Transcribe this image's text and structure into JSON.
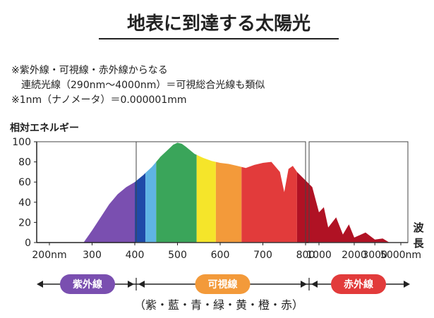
{
  "title": "地表に到達する太陽光",
  "notes": [
    "※紫外線・可視線・赤外線からなる",
    "連続光線（290nm〜4000nm）＝可視総合光線も類似",
    "※1nm（ナノメータ）＝0.000001mm"
  ],
  "chart_data": {
    "type": "area",
    "ylabel": "相対エネルギー",
    "xlabel": "波長",
    "ylim": [
      0,
      100
    ],
    "y_ticks": [
      "0",
      "20",
      "40",
      "60",
      "80",
      "100"
    ],
    "x_ticks": [
      "200nm",
      "300",
      "400",
      "500",
      "600",
      "700",
      "800",
      "1000",
      "2000",
      "3000",
      "5000nm"
    ],
    "grid": false,
    "visible_spectrum": {
      "x": [
        280,
        300,
        320,
        340,
        360,
        380,
        400,
        420,
        440,
        460,
        480,
        490,
        500,
        510,
        520,
        540,
        560,
        580,
        600,
        620,
        640,
        660,
        680,
        700,
        720,
        740,
        750,
        760,
        770,
        780
      ],
      "y": [
        0,
        12,
        25,
        38,
        48,
        55,
        60,
        67,
        75,
        85,
        93,
        97,
        99,
        98,
        95,
        88,
        84,
        81,
        79,
        78,
        76,
        74,
        77,
        79,
        80,
        70,
        50,
        73,
        76,
        70
      ]
    },
    "infrared_spectrum": {
      "x": [
        780,
        900,
        1000,
        1100,
        1200,
        1400,
        1600,
        1800,
        2000,
        2500,
        3000,
        3500,
        4000
      ],
      "y": [
        70,
        55,
        30,
        35,
        15,
        25,
        8,
        18,
        5,
        10,
        3,
        4,
        0
      ]
    },
    "bands": [
      {
        "name": "紫",
        "from": 280,
        "to": 400,
        "color": "#7a4fb0"
      },
      {
        "name": "藍",
        "from": 400,
        "to": 425,
        "color": "#1f4aa8"
      },
      {
        "name": "青",
        "from": 425,
        "to": 450,
        "color": "#5fb4e4"
      },
      {
        "name": "緑",
        "from": 450,
        "to": 545,
        "color": "#3aa55a"
      },
      {
        "name": "黄",
        "from": 545,
        "to": 590,
        "color": "#f5e52a"
      },
      {
        "name": "橙",
        "from": 590,
        "to": 650,
        "color": "#f39a3a"
      },
      {
        "name": "赤",
        "from": 650,
        "to": 780,
        "color": "#e23b3b"
      }
    ],
    "infrared_color": "#b01224",
    "regions": [
      {
        "label": "紫外線",
        "color": "#7a4fb0"
      },
      {
        "label": "可視線",
        "color": "#f39a3a"
      },
      {
        "label": "赤外線",
        "color": "#e23b3b"
      }
    ],
    "colors_caption": "（紫・藍・青・緑・黄・橙・赤）"
  }
}
